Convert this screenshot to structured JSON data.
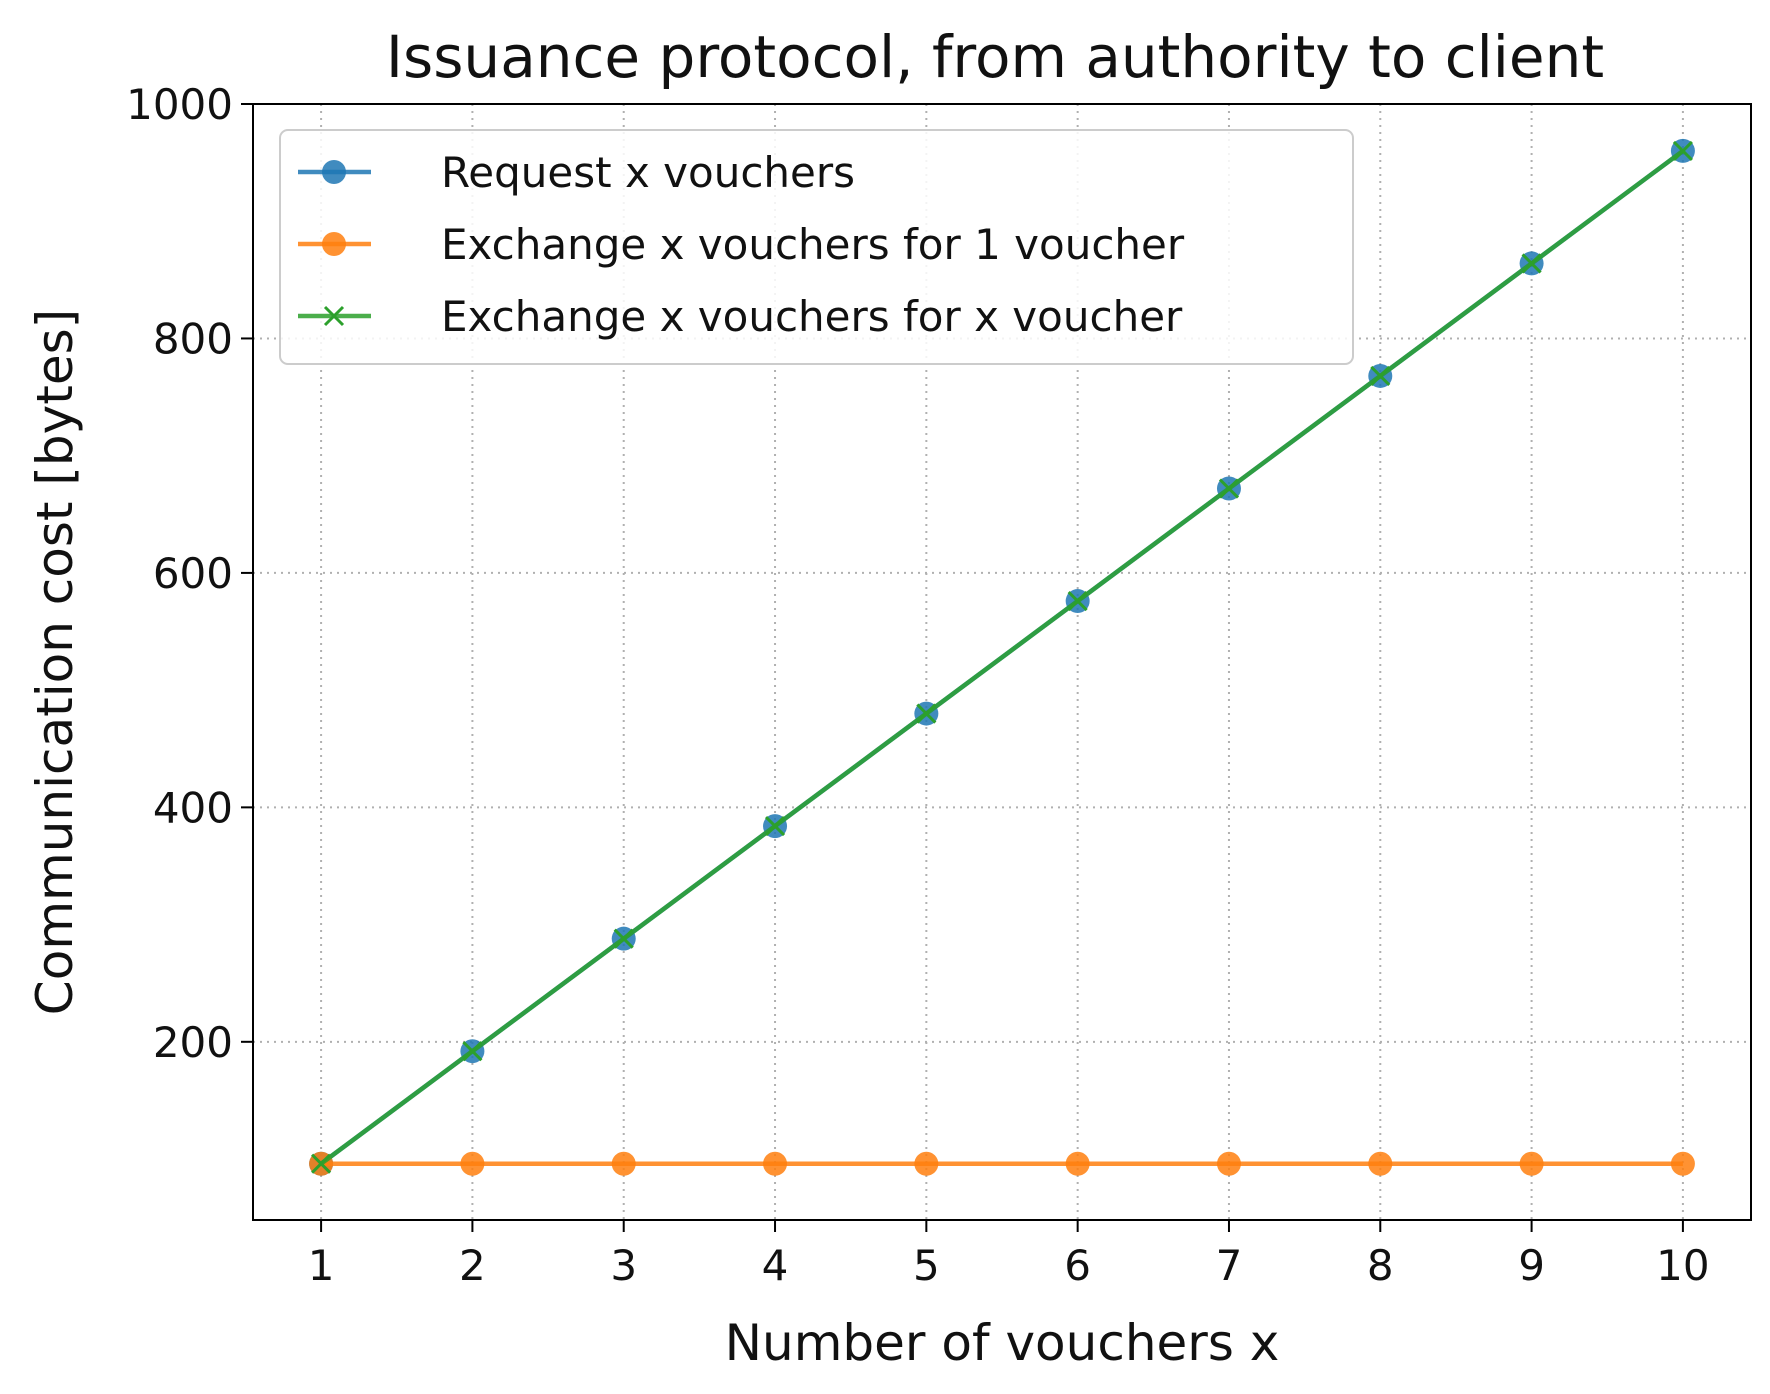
{
  "chart_data": {
    "type": "line",
    "title": "Issuance protocol, from authority to client",
    "xlabel": "Number of vouchers x",
    "ylabel": "Communication cost [bytes]",
    "x": [
      1,
      2,
      3,
      4,
      5,
      6,
      7,
      8,
      9,
      10
    ],
    "xlim": [
      0.55,
      10.45
    ],
    "ylim": [
      48,
      1000
    ],
    "xticks": [
      "1",
      "2",
      "3",
      "4",
      "5",
      "6",
      "7",
      "8",
      "9",
      "10"
    ],
    "yticks": [
      "200",
      "400",
      "600",
      "800",
      "1000"
    ],
    "ytick_values": [
      200,
      400,
      600,
      800,
      1000
    ],
    "grid": true,
    "legend_position": "upper-left",
    "series": [
      {
        "name": "Request x vouchers",
        "values": [
          96,
          192,
          288,
          384,
          480,
          576,
          672,
          768,
          864,
          960
        ],
        "color": "#1f77b4",
        "marker": "circle"
      },
      {
        "name": "Exchange x vouchers for 1 voucher",
        "values": [
          96,
          96,
          96,
          96,
          96,
          96,
          96,
          96,
          96,
          96
        ],
        "color": "#ff7f0e",
        "marker": "circle"
      },
      {
        "name": "Exchange x vouchers for x voucher",
        "values": [
          96,
          192,
          288,
          384,
          480,
          576,
          672,
          768,
          864,
          960
        ],
        "color": "#2ca02c",
        "marker": "x"
      }
    ]
  }
}
